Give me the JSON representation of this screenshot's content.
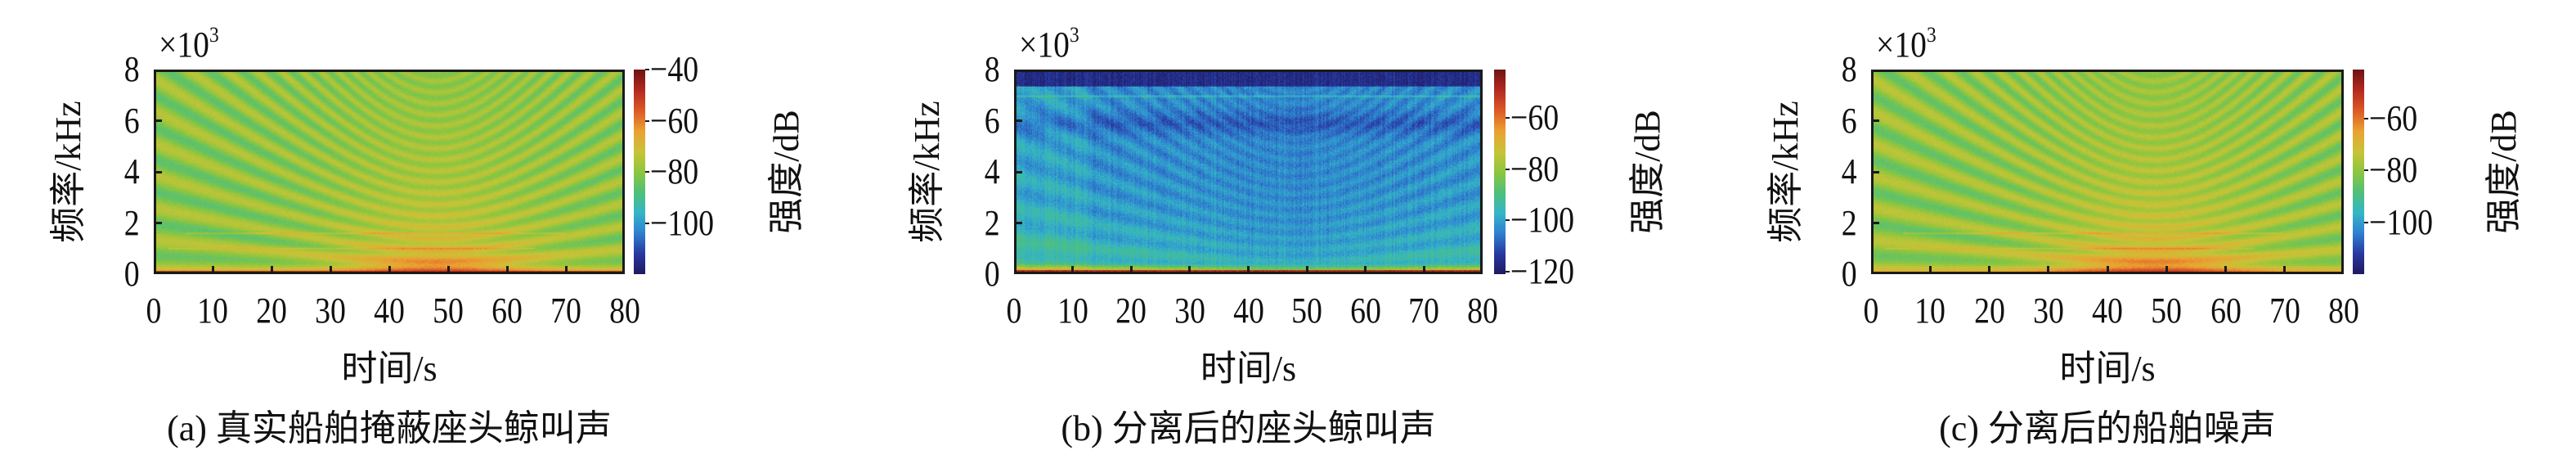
{
  "colors": {
    "colormap": [
      "#1e1a5e",
      "#2838a0",
      "#2f7fd0",
      "#34b6c8",
      "#4fc07a",
      "#8cc63f",
      "#c8c437",
      "#eba232",
      "#dd5a26",
      "#b52a20",
      "#6e1414"
    ]
  },
  "chart_data": [
    {
      "type": "heatmap",
      "title": "(a) 真实船舶掩蔽座头鲸叫声",
      "xlabel": "时间/s",
      "ylabel": "频率/kHz",
      "y_multiplier": "×10",
      "y_multiplier_exp": "3",
      "xlim": [
        0,
        80
      ],
      "ylim": [
        0,
        8
      ],
      "xticks": [
        "0",
        "10",
        "20",
        "30",
        "40",
        "50",
        "60",
        "70",
        "80"
      ],
      "yticks": [
        "0",
        "2",
        "4",
        "6",
        "8"
      ],
      "colorbar_label": "强度/dB",
      "colorbar_ticks": [
        "−40",
        "−60",
        "−80",
        "−100"
      ],
      "colorbar_tick_values": [
        -40,
        -60,
        -80,
        -100
      ],
      "clim": [
        -120,
        -40
      ],
      "pattern": "ship-masked-whale"
    },
    {
      "type": "heatmap",
      "title": "(b) 分离后的座头鲸叫声",
      "xlabel": "时间/s",
      "ylabel": "频率/kHz",
      "y_multiplier": "×10",
      "y_multiplier_exp": "3",
      "xlim": [
        0,
        80
      ],
      "ylim": [
        0,
        8
      ],
      "xticks": [
        "0",
        "10",
        "20",
        "30",
        "40",
        "50",
        "60",
        "70",
        "80"
      ],
      "yticks": [
        "0",
        "2",
        "4",
        "6",
        "8"
      ],
      "colorbar_label": "强度/dB",
      "colorbar_ticks": [
        "−60",
        "−80",
        "−100",
        "−120"
      ],
      "colorbar_tick_values": [
        -60,
        -80,
        -100,
        -120
      ],
      "clim": [
        -121,
        -41
      ],
      "pattern": "separated-whale"
    },
    {
      "type": "heatmap",
      "title": "(c) 分离后的船舶噪声",
      "xlabel": "时间/s",
      "ylabel": "频率/kHz",
      "y_multiplier": "×10",
      "y_multiplier_exp": "3",
      "xlim": [
        0,
        80
      ],
      "ylim": [
        0,
        8
      ],
      "xticks": [
        "0",
        "10",
        "20",
        "30",
        "40",
        "50",
        "60",
        "70",
        "80"
      ],
      "yticks": [
        "0",
        "2",
        "4",
        "6",
        "8"
      ],
      "colorbar_label": "强度/dB",
      "colorbar_ticks": [
        "−60",
        "−80",
        "−100"
      ],
      "colorbar_tick_values": [
        -60,
        -80,
        -100
      ],
      "clim": [
        -120,
        -41
      ],
      "pattern": "separated-ship"
    }
  ]
}
